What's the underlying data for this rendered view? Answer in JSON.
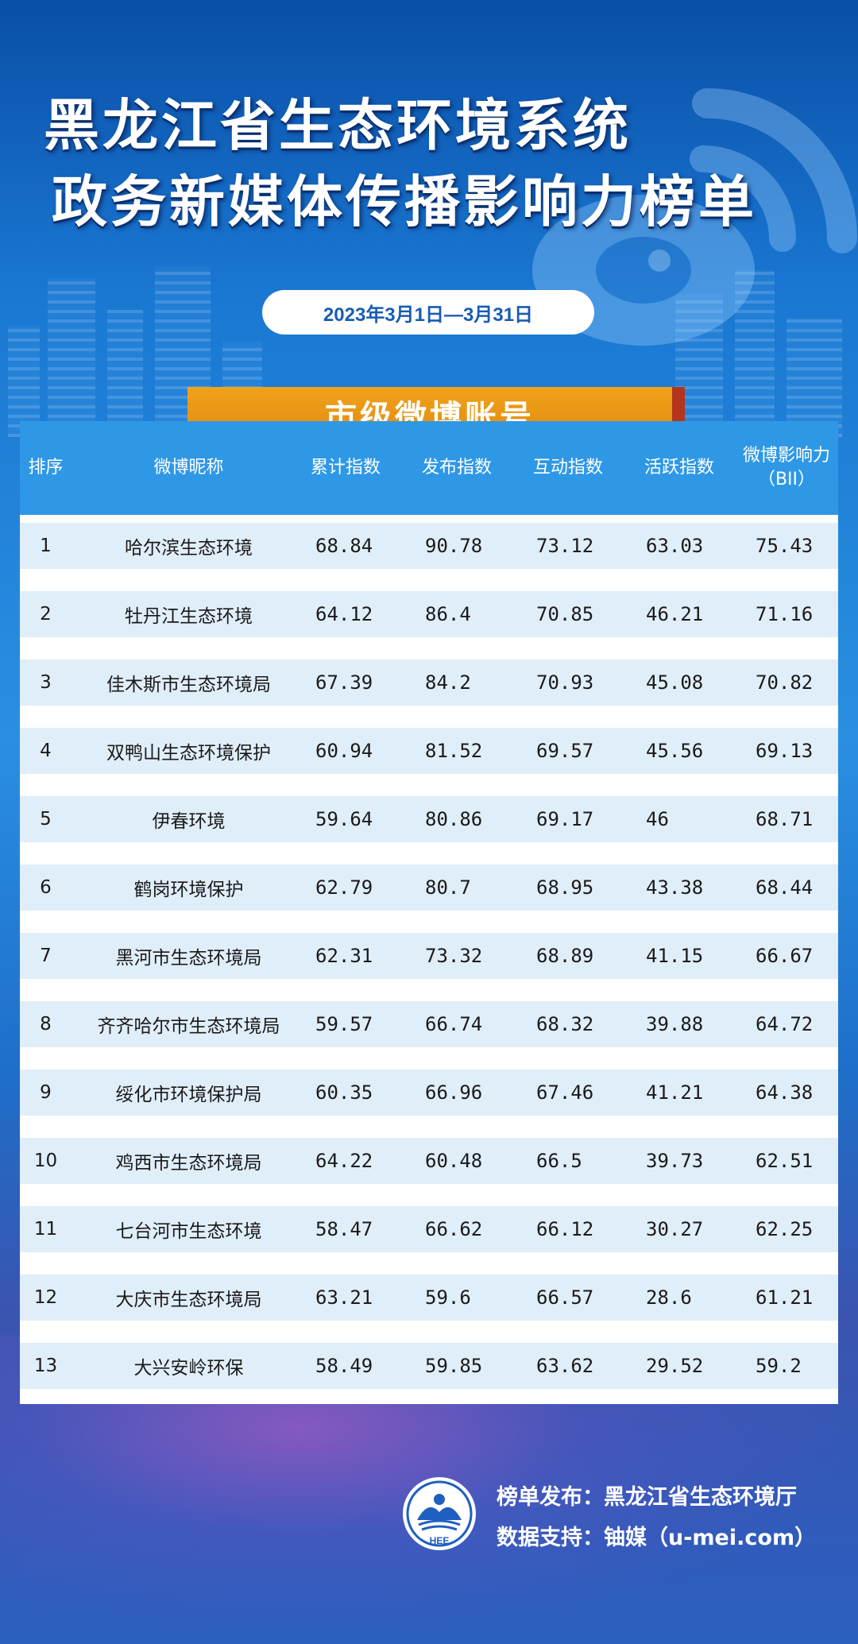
{
  "title": {
    "line1": "黑龙江省生态环境系统",
    "line2": "政务新媒体传播影响力榜单"
  },
  "date_range": "2023年3月1日—3月31日",
  "section_title": "市级微博账号",
  "table": {
    "headers": [
      "排序",
      "微博昵称",
      "累计指数",
      "发布指数",
      "互动指数",
      "活跃指数",
      "微博影响力\n（BII）"
    ],
    "rows": [
      [
        "1",
        "哈尔滨生态环境",
        "68.84",
        "90.78",
        "73.12",
        "63.03",
        "75.43"
      ],
      [
        "2",
        "牡丹江生态环境",
        "64.12",
        "86.4",
        "70.85",
        "46.21",
        "71.16"
      ],
      [
        "3",
        "佳木斯市生态环境局",
        "67.39",
        "84.2",
        "70.93",
        "45.08",
        "70.82"
      ],
      [
        "4",
        "双鸭山生态环境保护",
        "60.94",
        "81.52",
        "69.57",
        "45.56",
        "69.13"
      ],
      [
        "5",
        "伊春环境",
        "59.64",
        "80.86",
        "69.17",
        "46",
        "68.71"
      ],
      [
        "6",
        "鹤岗环境保护",
        "62.79",
        "80.7",
        "68.95",
        "43.38",
        "68.44"
      ],
      [
        "7",
        "黑河市生态环境局",
        "62.31",
        "73.32",
        "68.89",
        "41.15",
        "66.67"
      ],
      [
        "8",
        "齐齐哈尔市生态环境局",
        "59.57",
        "66.74",
        "68.32",
        "39.88",
        "64.72"
      ],
      [
        "9",
        "绥化市环境保护局",
        "60.35",
        "66.96",
        "67.46",
        "41.21",
        "64.38"
      ],
      [
        "10",
        "鸡西市生态环境局",
        "64.22",
        "60.48",
        "66.5",
        "39.73",
        "62.51"
      ],
      [
        "11",
        "七台河市生态环境",
        "58.47",
        "66.62",
        "66.12",
        "30.27",
        "62.25"
      ],
      [
        "12",
        "大庆市生态环境局",
        "63.21",
        "59.6",
        "66.57",
        "28.6",
        "61.21"
      ],
      [
        "13",
        "大兴安岭环保",
        "58.49",
        "59.85",
        "63.62",
        "29.52",
        "59.2"
      ]
    ]
  },
  "footer": {
    "publisher": "榜单发布：黑龙江省生态环境厅",
    "data_support": "数据支持：铀媒（u-mei.com）",
    "logo_text": "HEE"
  },
  "colors": {
    "header_bg": "#2f98e6",
    "row_bg": "#e0eef9",
    "banner": "#e8951a",
    "title_text": "#ffffff"
  }
}
